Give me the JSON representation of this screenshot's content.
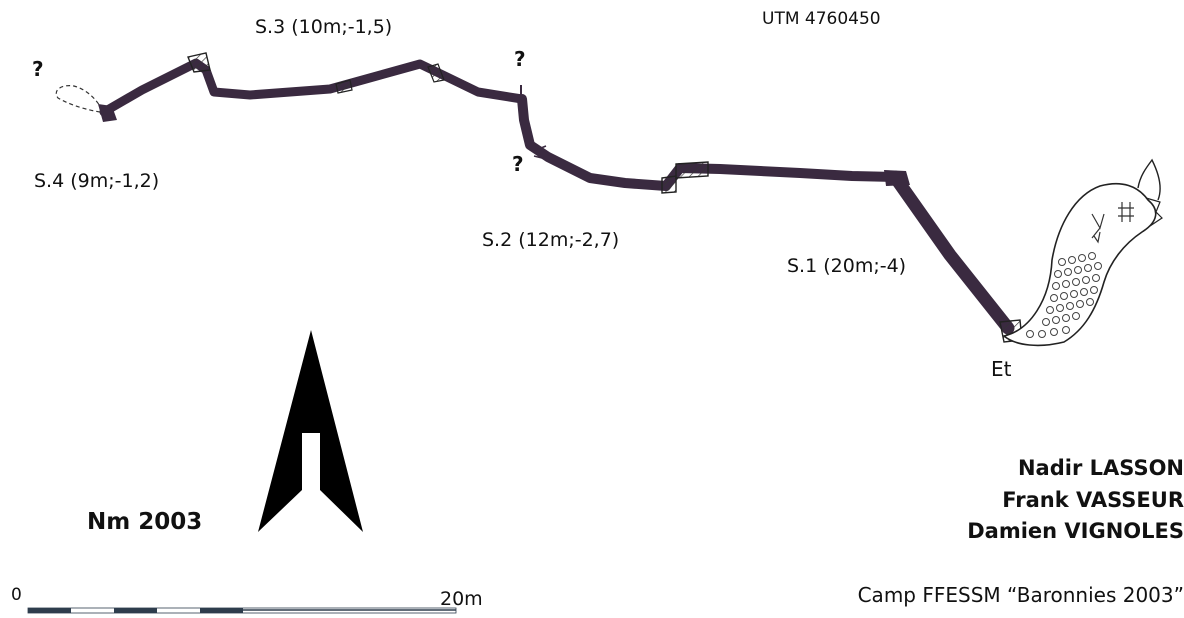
{
  "utm": "UTM 4760450",
  "sumps": [
    {
      "label": "S.1 (20m;-4)"
    },
    {
      "label": "S.2 (12m;-2,7)"
    },
    {
      "label": "S.3 (10m;-1,5)"
    },
    {
      "label": "S.4 (9m;-1,2)"
    }
  ],
  "unknown_marker": "?",
  "entrance_label": "Et",
  "north_label": "Nm 2003",
  "scale": {
    "start": "0",
    "end": "20m"
  },
  "authors": [
    "Nadir LASSON",
    "Frank VASSEUR",
    "Damien VIGNOLES"
  ],
  "camp": "Camp FFESSM “Baronnies 2003”",
  "colors": {
    "passage": "#3a2a40",
    "outline": "#222222",
    "scale_dark": "#2e3d4d"
  }
}
